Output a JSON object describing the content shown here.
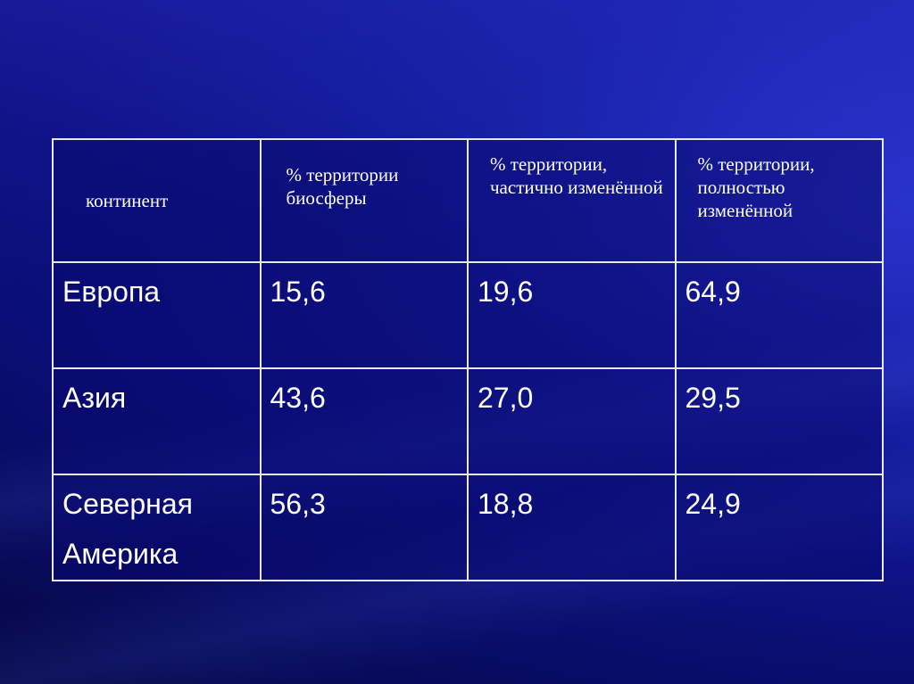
{
  "table": {
    "headers": [
      "континент",
      "% территории биосферы",
      "% территории, частично изменённой",
      "% территории, полностью изменённой"
    ],
    "rows": [
      [
        "Европа",
        "15,6",
        "19,6",
        "64,9"
      ],
      [
        "Азия",
        "43,6",
        "27,0",
        "29,5"
      ],
      [
        "Северная Америка",
        "56,3",
        "18,8",
        "24,9"
      ]
    ]
  },
  "colors": {
    "background": "#0a0e78",
    "border": "#e8e8f0",
    "text": "#ffffff"
  }
}
